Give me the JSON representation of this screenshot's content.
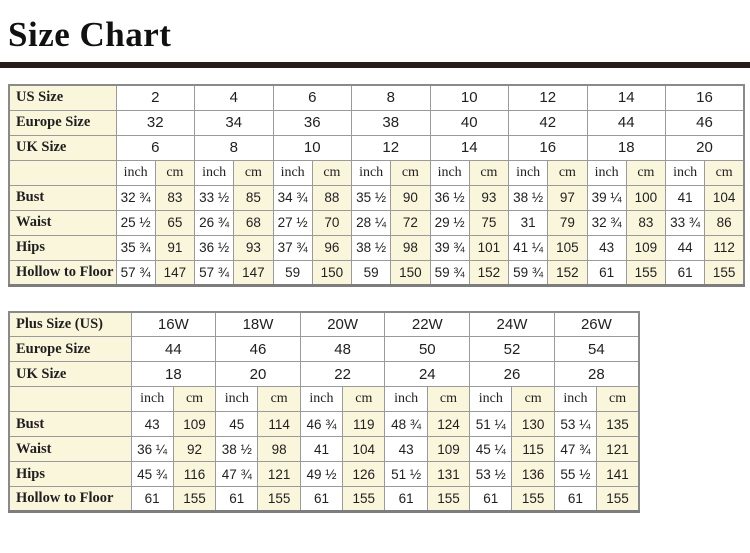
{
  "page": {
    "title": "Size Chart"
  },
  "colors": {
    "cream": "#faf6dc",
    "grid_border": "#9a9a9a",
    "outer_border": "#8a8a8a",
    "title_bar": "#261d1a",
    "text": "#1f1f1f"
  },
  "unit_labels": [
    "inch",
    "cm"
  ],
  "tables": [
    {
      "name": "standard-sizes",
      "size_rows": [
        {
          "label": "US Size",
          "values": [
            "2",
            "4",
            "6",
            "8",
            "10",
            "12",
            "14",
            "16"
          ]
        },
        {
          "label": "Europe Size",
          "values": [
            "32",
            "34",
            "36",
            "38",
            "40",
            "42",
            "44",
            "46"
          ]
        },
        {
          "label": "UK Size",
          "values": [
            "6",
            "8",
            "10",
            "12",
            "14",
            "16",
            "18",
            "20"
          ]
        }
      ],
      "measure_rows": [
        {
          "label": "Bust",
          "values": [
            [
              "32 ¾",
              "83"
            ],
            [
              "33 ½",
              "85"
            ],
            [
              "34 ¾",
              "88"
            ],
            [
              "35 ½",
              "90"
            ],
            [
              "36 ½",
              "93"
            ],
            [
              "38 ½",
              "97"
            ],
            [
              "39 ¼",
              "100"
            ],
            [
              "41",
              "104"
            ]
          ]
        },
        {
          "label": "Waist",
          "values": [
            [
              "25 ½",
              "65"
            ],
            [
              "26 ¾",
              "68"
            ],
            [
              "27 ½",
              "70"
            ],
            [
              "28 ¼",
              "72"
            ],
            [
              "29 ½",
              "75"
            ],
            [
              "31",
              "79"
            ],
            [
              "32 ¾",
              "83"
            ],
            [
              "33 ¾",
              "86"
            ]
          ]
        },
        {
          "label": "Hips",
          "values": [
            [
              "35 ¾",
              "91"
            ],
            [
              "36 ½",
              "93"
            ],
            [
              "37 ¾",
              "96"
            ],
            [
              "38 ½",
              "98"
            ],
            [
              "39 ¾",
              "101"
            ],
            [
              "41 ¼",
              "105"
            ],
            [
              "43",
              "109"
            ],
            [
              "44",
              "112"
            ]
          ]
        },
        {
          "label": "Hollow to Floor",
          "values": [
            [
              "57 ¾",
              "147"
            ],
            [
              "57 ¾",
              "147"
            ],
            [
              "59",
              "150"
            ],
            [
              "59",
              "150"
            ],
            [
              "59 ¾",
              "152"
            ],
            [
              "59 ¾",
              "152"
            ],
            [
              "61",
              "155"
            ],
            [
              "61",
              "155"
            ]
          ]
        }
      ]
    },
    {
      "name": "plus-sizes",
      "size_rows": [
        {
          "label": "Plus Size (US)",
          "values": [
            "16W",
            "18W",
            "20W",
            "22W",
            "24W",
            "26W"
          ]
        },
        {
          "label": "Europe Size",
          "values": [
            "44",
            "46",
            "48",
            "50",
            "52",
            "54"
          ]
        },
        {
          "label": "UK Size",
          "values": [
            "18",
            "20",
            "22",
            "24",
            "26",
            "28"
          ]
        }
      ],
      "measure_rows": [
        {
          "label": "Bust",
          "values": [
            [
              "43",
              "109"
            ],
            [
              "45",
              "114"
            ],
            [
              "46 ¾",
              "119"
            ],
            [
              "48 ¾",
              "124"
            ],
            [
              "51 ¼",
              "130"
            ],
            [
              "53 ¼",
              "135"
            ]
          ]
        },
        {
          "label": "Waist",
          "values": [
            [
              "36 ¼",
              "92"
            ],
            [
              "38 ½",
              "98"
            ],
            [
              "41",
              "104"
            ],
            [
              "43",
              "109"
            ],
            [
              "45 ¼",
              "115"
            ],
            [
              "47 ¾",
              "121"
            ]
          ]
        },
        {
          "label": "Hips",
          "values": [
            [
              "45 ¾",
              "116"
            ],
            [
              "47 ¾",
              "121"
            ],
            [
              "49 ½",
              "126"
            ],
            [
              "51 ½",
              "131"
            ],
            [
              "53 ½",
              "136"
            ],
            [
              "55 ½",
              "141"
            ]
          ]
        },
        {
          "label": "Hollow to Floor",
          "values": [
            [
              "61",
              "155"
            ],
            [
              "61",
              "155"
            ],
            [
              "61",
              "155"
            ],
            [
              "61",
              "155"
            ],
            [
              "61",
              "155"
            ],
            [
              "61",
              "155"
            ]
          ]
        }
      ]
    }
  ]
}
